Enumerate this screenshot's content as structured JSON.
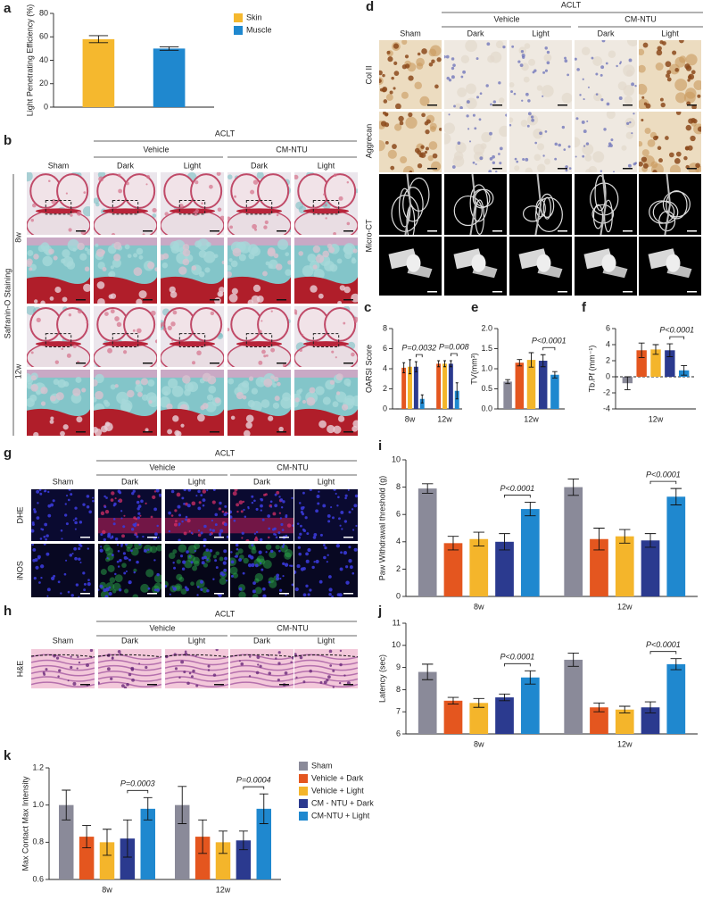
{
  "chart_data": [
    {
      "panel": "a",
      "type": "bar",
      "ylabel": "Light Penetrating Efficiency (%)",
      "legend": "upper right",
      "series": [
        {
          "name": "Skin",
          "color": "#f5b82e",
          "values": [
            58
          ],
          "errors": [
            3
          ]
        },
        {
          "name": "Muscle",
          "color": "#1f88cf",
          "values": [
            50
          ],
          "errors": [
            1.5
          ]
        }
      ],
      "ylim": [
        0,
        80
      ],
      "yticks": [
        0,
        20,
        40,
        60,
        80
      ]
    },
    {
      "panel": "c",
      "type": "bar",
      "ylabel": "OARSI Score",
      "categories": [
        "8w",
        "12w"
      ],
      "series": [
        {
          "color": "#8a8a99",
          "values": [
            0,
            0
          ],
          "errors": [
            0,
            0
          ]
        },
        {
          "color": "#e4561f",
          "values": [
            4.1,
            4.5
          ],
          "errors": [
            0.5,
            0.3
          ]
        },
        {
          "color": "#f4b52b",
          "values": [
            4.2,
            4.5
          ],
          "errors": [
            0.7,
            0.3
          ]
        },
        {
          "color": "#2b3a8f",
          "values": [
            4.2,
            4.5
          ],
          "errors": [
            0.5,
            0.3
          ]
        },
        {
          "color": "#1f88cf",
          "values": [
            1.0,
            1.8
          ],
          "errors": [
            0.4,
            0.8
          ]
        }
      ],
      "annotations": [
        "P=0.0032",
        "P=0.008"
      ],
      "ylim": [
        0,
        8
      ],
      "yticks": [
        0,
        2,
        4,
        6,
        8
      ]
    },
    {
      "panel": "e",
      "type": "bar",
      "ylabel": "TV(mm³)",
      "categories": [
        "12w"
      ],
      "series": [
        {
          "color": "#8a8a99",
          "values": [
            0.68
          ],
          "errors": [
            0.05
          ]
        },
        {
          "color": "#e4561f",
          "values": [
            1.15
          ],
          "errors": [
            0.08
          ]
        },
        {
          "color": "#f4b52b",
          "values": [
            1.22
          ],
          "errors": [
            0.18
          ]
        },
        {
          "color": "#2b3a8f",
          "values": [
            1.2
          ],
          "errors": [
            0.15
          ]
        },
        {
          "color": "#1f88cf",
          "values": [
            0.85
          ],
          "errors": [
            0.08
          ]
        }
      ],
      "annotations": [
        "P<0.0001"
      ],
      "ylim": [
        0,
        2
      ],
      "yticks": [
        {
          "value": 0,
          "label": "0.0"
        },
        0.5,
        {
          "value": 1,
          "label": "1.0"
        },
        1.5,
        {
          "value": 2,
          "label": "2.0"
        }
      ]
    },
    {
      "panel": "f",
      "type": "bar",
      "ylabel": "Tb.Pf (mm⁻¹)",
      "categories": [
        "12w"
      ],
      "zero_line": true,
      "series": [
        {
          "color": "#8a8a99",
          "values": [
            -0.8
          ],
          "errors": [
            0.8
          ]
        },
        {
          "color": "#e4561f",
          "values": [
            3.3
          ],
          "errors": [
            0.9
          ]
        },
        {
          "color": "#f4b52b",
          "values": [
            3.4
          ],
          "errors": [
            0.6
          ]
        },
        {
          "color": "#2b3a8f",
          "values": [
            3.3
          ],
          "errors": [
            0.8
          ]
        },
        {
          "color": "#1f88cf",
          "values": [
            0.8
          ],
          "errors": [
            0.6
          ]
        }
      ],
      "annotations": [
        "P<0.0001"
      ],
      "ylim": [
        -4,
        6
      ],
      "yticks": [
        -4,
        -2,
        0,
        2,
        4,
        6
      ]
    },
    {
      "panel": "i",
      "type": "bar",
      "ylabel": "Paw Withdrawal threshold (g)",
      "categories": [
        "8w",
        "12w"
      ],
      "series": [
        {
          "color": "#8a8a99",
          "values": [
            7.9,
            8.0
          ],
          "errors": [
            0.35,
            0.6
          ]
        },
        {
          "color": "#e4561f",
          "values": [
            3.9,
            4.2
          ],
          "errors": [
            0.5,
            0.8
          ]
        },
        {
          "color": "#f4b52b",
          "values": [
            4.2,
            4.4
          ],
          "errors": [
            0.5,
            0.5
          ]
        },
        {
          "color": "#2b3a8f",
          "values": [
            4.0,
            4.1
          ],
          "errors": [
            0.6,
            0.5
          ]
        },
        {
          "color": "#1f88cf",
          "values": [
            6.4,
            7.3
          ],
          "errors": [
            0.5,
            0.6
          ]
        }
      ],
      "annotations": [
        "P<0.0001",
        "P<0.0001"
      ],
      "ylim": [
        0,
        10
      ],
      "yticks": [
        0,
        2,
        4,
        6,
        8,
        10
      ]
    },
    {
      "panel": "j",
      "type": "bar",
      "ylabel": "Latency (sec)",
      "categories": [
        "8w",
        "12w"
      ],
      "series": [
        {
          "color": "#8a8a99",
          "values": [
            8.8,
            9.35
          ],
          "errors": [
            0.35,
            0.3
          ]
        },
        {
          "color": "#e4561f",
          "values": [
            7.5,
            7.2
          ],
          "errors": [
            0.15,
            0.2
          ]
        },
        {
          "color": "#f4b52b",
          "values": [
            7.4,
            7.1
          ],
          "errors": [
            0.2,
            0.15
          ]
        },
        {
          "color": "#2b3a8f",
          "values": [
            7.65,
            7.2
          ],
          "errors": [
            0.15,
            0.25
          ]
        },
        {
          "color": "#1f88cf",
          "values": [
            8.55,
            9.15
          ],
          "errors": [
            0.3,
            0.25
          ]
        }
      ],
      "annotations": [
        "P<0.0001",
        "P<0.0001"
      ],
      "ylim": [
        6,
        11
      ],
      "yticks": [
        6,
        7,
        8,
        9,
        10,
        11
      ]
    },
    {
      "panel": "k",
      "type": "bar",
      "ylabel": "Max Contact Max Intensity",
      "categories": [
        "8w",
        "12w"
      ],
      "legend": "right",
      "series": [
        {
          "name": "Sham",
          "color": "#8a8a99",
          "values": [
            1.0,
            1.0
          ],
          "errors": [
            0.08,
            0.1
          ]
        },
        {
          "name": "Vehicle + Dark",
          "color": "#e4561f",
          "values": [
            0.83,
            0.83
          ],
          "errors": [
            0.06,
            0.09
          ]
        },
        {
          "name": "Vehicle + Light",
          "color": "#f4b52b",
          "values": [
            0.8,
            0.8
          ],
          "errors": [
            0.07,
            0.06
          ]
        },
        {
          "name": "CM - NTU + Dark",
          "color": "#2b3a8f",
          "values": [
            0.82,
            0.81
          ],
          "errors": [
            0.1,
            0.05
          ]
        },
        {
          "name": "CM-NTU + Light",
          "color": "#1f88cf",
          "values": [
            0.98,
            0.98
          ],
          "errors": [
            0.06,
            0.08
          ]
        }
      ],
      "annotations": [
        "P=0.0003",
        "P=0.0004"
      ],
      "ylim": [
        0.6,
        1.2
      ],
      "yticks": [
        0.6,
        0.8,
        {
          "value": 1,
          "label": "1.0"
        },
        1.2
      ]
    }
  ],
  "panels": {
    "b": {
      "letter": "b",
      "group": "ACLT",
      "subgroups": [
        "Vehicle",
        "CM-NTU"
      ],
      "columns": [
        "Sham",
        "Dark",
        "Light",
        "Dark",
        "Light"
      ],
      "rows": [
        "8w",
        "12w"
      ],
      "side_label": "Safranin-O Staining"
    },
    "d": {
      "letter": "d",
      "group": "ACLT",
      "subgroups": [
        "Vehicle",
        "CM-NTU"
      ],
      "columns": [
        "Sham",
        "Dark",
        "Light",
        "Dark",
        "Light"
      ],
      "rows": [
        "Col II",
        "Aggrecan",
        "Micro-CT"
      ]
    },
    "g": {
      "letter": "g",
      "group": "ACLT",
      "subgroups": [
        "Vehicle",
        "CM-NTU"
      ],
      "columns": [
        "Sham",
        "Dark",
        "Light",
        "Dark",
        "Light"
      ],
      "rows": [
        "DHE",
        "iNOS"
      ]
    },
    "h": {
      "letter": "h",
      "group": "ACLT",
      "subgroups": [
        "Vehicle",
        "CM-NTU"
      ],
      "columns": [
        "Sham",
        "Dark",
        "Light",
        "Dark",
        "Light"
      ],
      "rows": [
        "H&E"
      ]
    }
  }
}
